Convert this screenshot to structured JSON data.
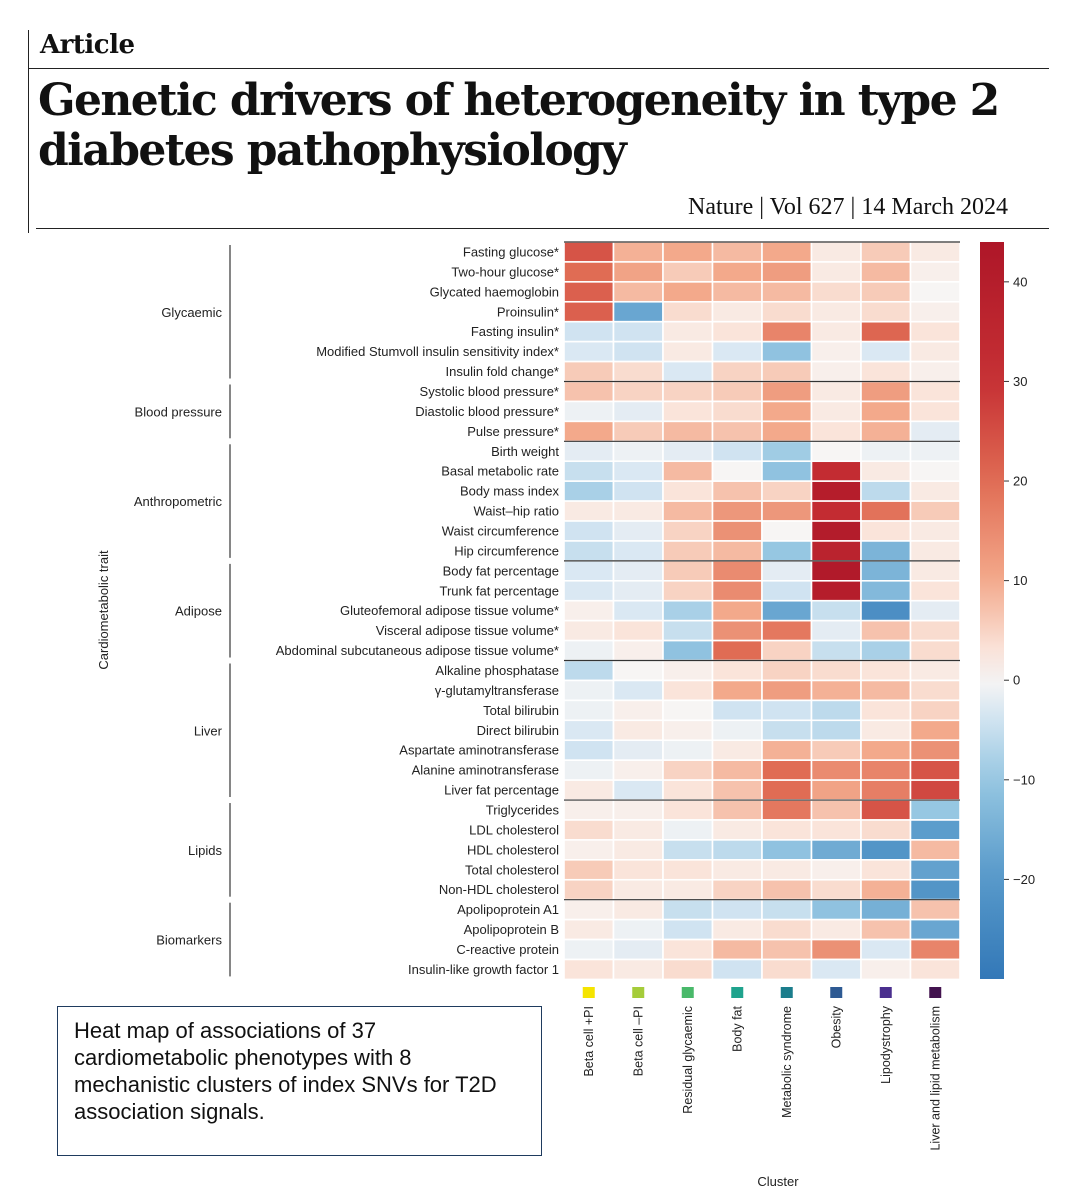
{
  "header": {
    "section": "Article",
    "title": "Genetic drivers of heterogeneity in type 2 diabetes pathophysiology",
    "citation": "Nature | Vol 627 | 14 March 2024"
  },
  "caption": "Heat map of associations of 37 cardiometabolic phenotypes with 8 mechanistic clusters of index SNVs for T2D association signals.",
  "chart_data": {
    "type": "heatmap",
    "xlabel": "Cluster",
    "ylabel": "Cardiometabolic trait",
    "clusters": [
      "Beta cell +PI",
      "Beta cell –PI",
      "Residual glycaemic",
      "Body fat",
      "Metabolic syndrome",
      "Obesity",
      "Lipodystrophy",
      "Liver and lipid metabolism"
    ],
    "cluster_colors": [
      "#f5e400",
      "#a5cc3a",
      "#49b96a",
      "#1fa38d",
      "#1b7d8c",
      "#2e5a93",
      "#4a2f8e",
      "#43134f"
    ],
    "groups": [
      {
        "name": "Glycaemic",
        "start": 0,
        "end": 6
      },
      {
        "name": "Blood pressure",
        "start": 7,
        "end": 9
      },
      {
        "name": "Anthropometric",
        "start": 10,
        "end": 15
      },
      {
        "name": "Adipose",
        "start": 16,
        "end": 20
      },
      {
        "name": "Liver",
        "start": 21,
        "end": 27
      },
      {
        "name": "Lipids",
        "start": 28,
        "end": 32
      },
      {
        "name": "Biomarkers",
        "start": 33,
        "end": 36
      }
    ],
    "traits": [
      "Fasting glucose*",
      "Two-hour glucose*",
      "Glycated haemoglobin",
      "Proinsulin*",
      "Fasting insulin*",
      "Modified Stumvoll insulin sensitivity index*",
      "Insulin fold change*",
      "Systolic blood pressure*",
      "Diastolic blood pressure*",
      "Pulse pressure*",
      "Birth weight",
      "Basal metabolic rate",
      "Body mass index",
      "Waist–hip ratio",
      "Waist circumference",
      "Hip circumference",
      "Body fat percentage",
      "Trunk fat percentage",
      "Gluteofemoral adipose tissue volume*",
      "Visceral adipose tissue volume*",
      "Abdominal subcutaneous adipose tissue volume*",
      "Alkaline phosphatase",
      "γ-glutamyltransferase",
      "Total bilirubin",
      "Direct bilirubin",
      "Aspartate aminotransferase",
      "Alanine aminotransferase",
      "Liver fat percentage",
      "Triglycerides",
      "LDL cholesterol",
      "HDL cholesterol",
      "Total cholesterol",
      "Non-HDL cholesterol",
      "Apolipoprotein A1",
      "Apolipoprotein B",
      "C-reactive protein",
      "Insulin-like growth factor 1"
    ],
    "values": [
      [
        24,
        9,
        10,
        8,
        10,
        2,
        6,
        2
      ],
      [
        20,
        11,
        6,
        10,
        12,
        2,
        8,
        1
      ],
      [
        22,
        8,
        10,
        8,
        8,
        4,
        6,
        0
      ],
      [
        22,
        -17,
        4,
        2,
        4,
        2,
        4,
        1
      ],
      [
        -4,
        -4,
        2,
        3,
        16,
        2,
        21,
        3
      ],
      [
        -3,
        -4,
        2,
        -3,
        -11,
        1,
        -3,
        2
      ],
      [
        6,
        4,
        -3,
        5,
        6,
        1,
        3,
        1
      ],
      [
        7,
        5,
        5,
        6,
        12,
        2,
        12,
        3
      ],
      [
        -1,
        -2,
        3,
        4,
        10,
        2,
        10,
        3
      ],
      [
        10,
        6,
        8,
        7,
        10,
        3,
        9,
        -2
      ],
      [
        -2,
        -1,
        -2,
        -4,
        -9,
        0,
        -1,
        -1
      ],
      [
        -5,
        -3,
        8,
        0,
        -11,
        32,
        2,
        0
      ],
      [
        -8,
        -4,
        3,
        7,
        5,
        40,
        -6,
        2
      ],
      [
        2,
        2,
        8,
        13,
        13,
        32,
        19,
        6
      ],
      [
        -4,
        -2,
        5,
        14,
        0,
        41,
        3,
        2
      ],
      [
        -5,
        -3,
        6,
        8,
        -10,
        37,
        -14,
        2
      ],
      [
        -3,
        -2,
        6,
        15,
        -2,
        42,
        -14,
        2
      ],
      [
        -3,
        -2,
        5,
        15,
        -4,
        40,
        -13,
        3
      ],
      [
        1,
        -3,
        -8,
        10,
        -17,
        -5,
        -23,
        -2
      ],
      [
        2,
        3,
        -5,
        14,
        18,
        -2,
        7,
        4
      ],
      [
        -1,
        1,
        -11,
        20,
        5,
        -5,
        -8,
        4
      ],
      [
        -6,
        0,
        1,
        3,
        5,
        4,
        3,
        2
      ],
      [
        -1,
        -3,
        3,
        10,
        12,
        9,
        8,
        4
      ],
      [
        -1,
        1,
        0,
        -4,
        -4,
        -6,
        3,
        5
      ],
      [
        -3,
        2,
        1,
        -1,
        -5,
        -6,
        2,
        10
      ],
      [
        -4,
        -2,
        -1,
        2,
        9,
        6,
        10,
        14
      ],
      [
        -1,
        1,
        5,
        8,
        20,
        15,
        16,
        24
      ],
      [
        2,
        -3,
        3,
        7,
        20,
        11,
        17,
        26
      ],
      [
        1,
        1,
        3,
        7,
        18,
        7,
        24,
        -10
      ],
      [
        4,
        2,
        -1,
        2,
        3,
        3,
        4,
        -19
      ],
      [
        1,
        2,
        -5,
        -6,
        -11,
        -16,
        -21,
        8
      ],
      [
        6,
        3,
        3,
        2,
        2,
        1,
        3,
        -18
      ],
      [
        5,
        2,
        2,
        5,
        7,
        4,
        9,
        -21
      ],
      [
        1,
        2,
        -5,
        -4,
        -5,
        -11,
        -15,
        7
      ],
      [
        2,
        -1,
        -4,
        2,
        4,
        2,
        7,
        -17
      ],
      [
        -1,
        -2,
        3,
        8,
        7,
        14,
        -3,
        16
      ],
      [
        3,
        2,
        4,
        -4,
        4,
        -3,
        1,
        3
      ]
    ],
    "colorbar": {
      "min": -30,
      "max": 44,
      "ticks": [
        40,
        30,
        20,
        10,
        0,
        -10,
        -20
      ],
      "tick_labels": [
        "40",
        "30",
        "20",
        "10",
        "0",
        "−10",
        "−20"
      ]
    },
    "star_note": "*"
  }
}
